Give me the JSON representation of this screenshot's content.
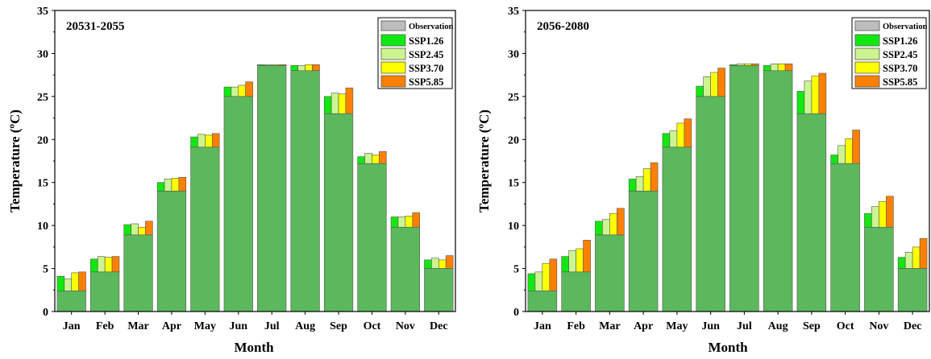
{
  "colors": {
    "observation": "#5cb85c",
    "observation_legend": "#bdbdbd",
    "SSP1.26": "#11e811",
    "SSP2.45": "#ccf591",
    "SSP3.70": "#ffff00",
    "SSP5.85": "#ff8000",
    "axis": "#000000"
  },
  "chart_data": [
    {
      "type": "bar",
      "panel_label": "20531-2055",
      "xlabel": "Month",
      "ylabel": "Temperature (ºC)",
      "ylim": [
        0,
        35
      ],
      "yticks": [
        "0",
        "5",
        "10",
        "15",
        "20",
        "25",
        "30",
        "35"
      ],
      "grid": false,
      "legend_position": "top-right",
      "legend": [
        "Observation",
        "SSP1.26",
        "SSP2.45",
        "SSP3.70",
        "SSP5.85"
      ],
      "categories": [
        "Jan",
        "Feb",
        "Mar",
        "Apr",
        "May",
        "Jun",
        "Jul",
        "Aug",
        "Sep",
        "Oct",
        "Nov",
        "Dec"
      ],
      "observation": [
        2.4,
        4.6,
        8.9,
        14.0,
        19.1,
        25.0,
        28.6,
        28.0,
        23.0,
        17.2,
        9.8,
        5.0
      ],
      "series": [
        {
          "name": "SSP1.26",
          "values": [
            4.1,
            6.1,
            10.1,
            15.0,
            20.3,
            26.1,
            28.7,
            28.6,
            25.0,
            18.0,
            11.0,
            6.0
          ]
        },
        {
          "name": "SSP2.45",
          "values": [
            3.8,
            6.4,
            10.2,
            15.4,
            20.6,
            26.1,
            28.7,
            28.6,
            25.4,
            18.4,
            11.0,
            6.2
          ]
        },
        {
          "name": "SSP3.70",
          "values": [
            4.5,
            6.3,
            9.8,
            15.5,
            20.5,
            26.3,
            28.7,
            28.7,
            25.3,
            18.2,
            11.1,
            6.0
          ]
        },
        {
          "name": "SSP5.85",
          "values": [
            4.6,
            6.4,
            10.5,
            15.6,
            20.7,
            26.7,
            28.7,
            28.7,
            26.0,
            18.6,
            11.5,
            6.5
          ]
        }
      ]
    },
    {
      "type": "bar",
      "panel_label": "2056-2080",
      "xlabel": "Month",
      "ylabel": "Temperature (ºC)",
      "ylim": [
        0,
        35
      ],
      "yticks": [
        "0",
        "5",
        "10",
        "15",
        "20",
        "25",
        "30",
        "35"
      ],
      "grid": false,
      "legend_position": "top-right",
      "legend": [
        "Observation",
        "SSP1.26",
        "SSP2.45",
        "SSP3.70",
        "SSP5.85"
      ],
      "categories": [
        "Jan",
        "Feb",
        "Mar",
        "Apr",
        "May",
        "Jun",
        "Jul",
        "Aug",
        "Sep",
        "Oct",
        "Nov",
        "Dec"
      ],
      "observation": [
        2.4,
        4.6,
        8.9,
        14.0,
        19.1,
        25.0,
        28.6,
        28.0,
        23.0,
        17.2,
        9.8,
        5.0
      ],
      "series": [
        {
          "name": "SSP1.26",
          "values": [
            4.4,
            6.4,
            10.5,
            15.4,
            20.7,
            26.2,
            28.7,
            28.6,
            25.6,
            18.2,
            11.4,
            6.3
          ]
        },
        {
          "name": "SSP2.45",
          "values": [
            4.6,
            7.1,
            10.7,
            15.7,
            21.0,
            27.3,
            28.8,
            28.8,
            26.8,
            19.3,
            12.2,
            6.9
          ]
        },
        {
          "name": "SSP3.70",
          "values": [
            5.6,
            7.3,
            11.4,
            16.6,
            21.9,
            27.8,
            28.8,
            28.8,
            27.4,
            20.1,
            12.8,
            7.5
          ]
        },
        {
          "name": "SSP5.85",
          "values": [
            6.1,
            8.3,
            12.0,
            17.3,
            22.4,
            28.3,
            28.8,
            28.8,
            27.7,
            21.1,
            13.4,
            8.5
          ]
        }
      ]
    }
  ]
}
